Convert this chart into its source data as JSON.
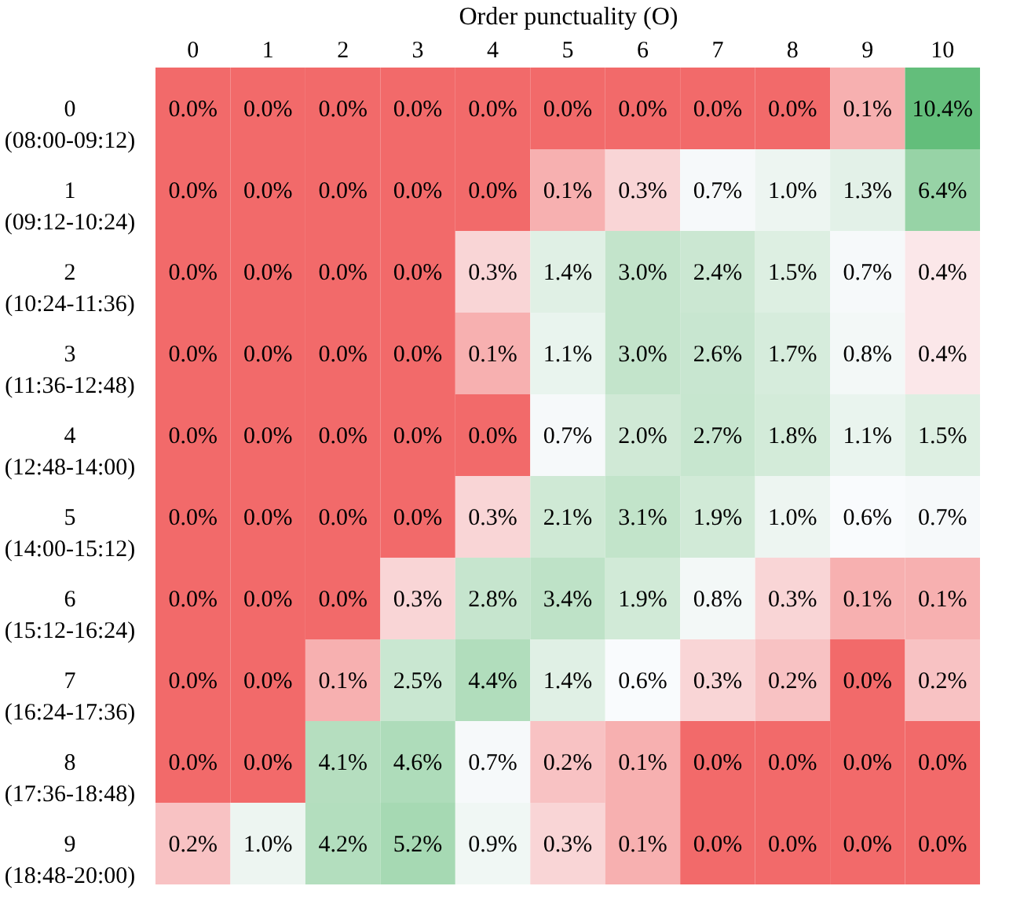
{
  "chart_data": {
    "type": "heatmap",
    "xlabel": "Order punctuality (O)",
    "categories": [
      "0",
      "1",
      "2",
      "3",
      "4",
      "5",
      "6",
      "7",
      "8",
      "9",
      "10"
    ],
    "y_categories": [
      "0\n(08:00-09:12)",
      "1\n(09:12-10:24)",
      "2\n(10:24-11:36)",
      "3\n(11:36-12:48)",
      "4\n(12:48-14:00)",
      "5\n(14:00-15:12)",
      "6\n(15:12-16:24)",
      "7\n(16:24-17:36)",
      "8\n(17:36-18:48)",
      "9\n(18:48-20:00)"
    ],
    "cells": [
      [
        0.0,
        0.0,
        0.0,
        0.0,
        0.0,
        0.0,
        0.0,
        0.0,
        0.0,
        0.1,
        10.4
      ],
      [
        0.0,
        0.0,
        0.0,
        0.0,
        0.0,
        0.1,
        0.3,
        0.7,
        1.0,
        1.3,
        6.4
      ],
      [
        0.0,
        0.0,
        0.0,
        0.0,
        0.3,
        1.4,
        3.0,
        2.4,
        1.5,
        0.7,
        0.4
      ],
      [
        0.0,
        0.0,
        0.0,
        0.0,
        0.1,
        1.1,
        3.0,
        2.6,
        1.7,
        0.8,
        0.4
      ],
      [
        0.0,
        0.0,
        0.0,
        0.0,
        0.0,
        0.7,
        2.0,
        2.7,
        1.8,
        1.1,
        1.5
      ],
      [
        0.0,
        0.0,
        0.0,
        0.0,
        0.3,
        2.1,
        3.1,
        1.9,
        1.0,
        0.6,
        0.7
      ],
      [
        0.0,
        0.0,
        0.0,
        0.3,
        2.8,
        3.4,
        1.9,
        0.8,
        0.3,
        0.1,
        0.1
      ],
      [
        0.0,
        0.0,
        0.1,
        2.5,
        4.4,
        1.4,
        0.6,
        0.3,
        0.2,
        0.0,
        0.2
      ],
      [
        0.0,
        0.0,
        4.1,
        4.6,
        0.7,
        0.2,
        0.1,
        0.0,
        0.0,
        0.0,
        0.0
      ],
      [
        0.2,
        1.0,
        4.2,
        5.2,
        0.9,
        0.3,
        0.1,
        0.0,
        0.0,
        0.0,
        0.0
      ]
    ],
    "cell_labels": [
      [
        "0.0%",
        "0.0%",
        "0.0%",
        "0.0%",
        "0.0%",
        "0.0%",
        "0.0%",
        "0.0%",
        "0.0%",
        "0.1%",
        "10.4%"
      ],
      [
        "0.0%",
        "0.0%",
        "0.0%",
        "0.0%",
        "0.0%",
        "0.1%",
        "0.3%",
        "0.7%",
        "1.0%",
        "1.3%",
        "6.4%"
      ],
      [
        "0.0%",
        "0.0%",
        "0.0%",
        "0.0%",
        "0.3%",
        "1.4%",
        "3.0%",
        "2.4%",
        "1.5%",
        "0.7%",
        "0.4%"
      ],
      [
        "0.0%",
        "0.0%",
        "0.0%",
        "0.0%",
        "0.1%",
        "1.1%",
        "3.0%",
        "2.6%",
        "1.7%",
        "0.8%",
        "0.4%"
      ],
      [
        "0.0%",
        "0.0%",
        "0.0%",
        "0.0%",
        "0.0%",
        "0.7%",
        "2.0%",
        "2.7%",
        "1.8%",
        "1.1%",
        "1.5%"
      ],
      [
        "0.0%",
        "0.0%",
        "0.0%",
        "0.0%",
        "0.3%",
        "2.1%",
        "3.1%",
        "1.9%",
        "1.0%",
        "0.6%",
        "0.7%"
      ],
      [
        "0.0%",
        "0.0%",
        "0.0%",
        "0.3%",
        "2.8%",
        "3.4%",
        "1.9%",
        "0.8%",
        "0.3%",
        "0.1%",
        "0.1%"
      ],
      [
        "0.0%",
        "0.0%",
        "0.1%",
        "2.5%",
        "4.4%",
        "1.4%",
        "0.6%",
        "0.3%",
        "0.2%",
        "0.0%",
        "0.2%"
      ],
      [
        "0.0%",
        "0.0%",
        "4.1%",
        "4.6%",
        "0.7%",
        "0.2%",
        "0.1%",
        "0.0%",
        "0.0%",
        "0.0%",
        "0.0%"
      ],
      [
        "0.2%",
        "1.0%",
        "4.2%",
        "5.2%",
        "0.9%",
        "0.3%",
        "0.1%",
        "0.0%",
        "0.0%",
        "0.0%",
        "0.0%"
      ]
    ],
    "colors": [
      "#f26a6a",
      "#f7b0b0",
      "#fcfcff",
      "#d2ead8",
      "#63be7b"
    ]
  }
}
